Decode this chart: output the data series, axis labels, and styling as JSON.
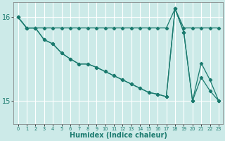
{
  "xlabel": "Humidex (Indice chaleur)",
  "bg_color": "#cceae8",
  "grid_color": "#ffffff",
  "line_color": "#1a7a6e",
  "xlim": [
    -0.5,
    23.5
  ],
  "ylim": [
    14.72,
    16.18
  ],
  "yticks": [
    15,
    16
  ],
  "xticks": [
    0,
    1,
    2,
    3,
    4,
    5,
    6,
    7,
    8,
    9,
    10,
    11,
    12,
    13,
    14,
    15,
    16,
    17,
    18,
    19,
    20,
    21,
    22,
    23
  ],
  "series1_x": [
    0,
    1,
    2,
    3,
    4,
    5,
    6,
    7,
    8,
    9,
    10,
    11,
    12,
    13,
    14,
    15,
    16,
    17,
    18,
    19,
    20,
    21,
    22,
    23
  ],
  "series1_y": [
    16.0,
    15.87,
    15.87,
    15.87,
    15.87,
    15.87,
    15.87,
    15.87,
    15.87,
    15.87,
    15.87,
    15.87,
    15.87,
    15.87,
    15.87,
    15.87,
    15.87,
    15.87,
    16.1,
    15.87,
    15.87,
    15.87,
    15.87,
    15.87
  ],
  "series2_x": [
    0,
    1,
    2,
    3,
    4,
    5,
    6,
    7,
    8,
    9,
    10,
    11,
    12,
    13,
    14,
    15,
    16,
    17,
    18,
    19,
    20,
    21,
    22,
    23
  ],
  "series2_y": [
    16.0,
    15.87,
    15.87,
    15.73,
    15.68,
    15.57,
    15.5,
    15.44,
    15.44,
    15.4,
    15.35,
    15.3,
    15.25,
    15.2,
    15.15,
    15.1,
    15.08,
    15.05,
    16.1,
    15.82,
    15.0,
    15.45,
    15.25,
    15.0
  ],
  "series3_x": [
    0,
    1,
    2,
    3,
    4,
    5,
    6,
    7,
    8,
    9,
    10,
    11,
    12,
    13,
    14,
    15,
    16,
    17,
    18,
    19,
    20,
    21,
    22,
    23
  ],
  "series3_y": [
    16.0,
    15.87,
    15.87,
    15.73,
    15.68,
    15.57,
    15.5,
    15.44,
    15.44,
    15.4,
    15.35,
    15.3,
    15.25,
    15.2,
    15.15,
    15.1,
    15.08,
    15.05,
    16.1,
    15.82,
    15.0,
    15.28,
    15.12,
    15.0
  ]
}
